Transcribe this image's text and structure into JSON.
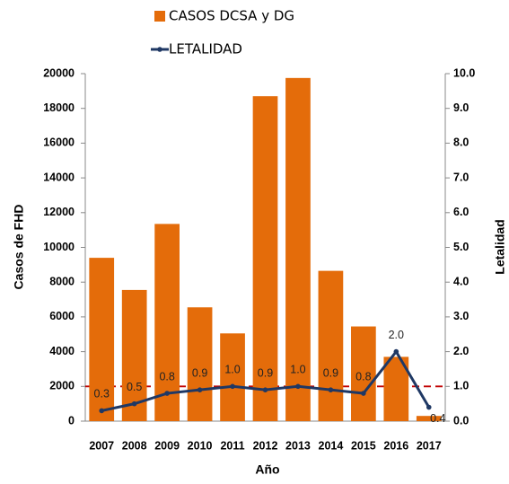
{
  "chart_data": {
    "type": "bar_line",
    "x_label": "Año",
    "y_label": "Casos de FHD",
    "y2_label": "Letalidad",
    "categories": [
      "2007",
      "2008",
      "2009",
      "2010",
      "2011",
      "2012",
      "2013",
      "2014",
      "2015",
      "2016",
      "2017"
    ],
    "series": [
      {
        "name": "CASOS DCSA y DG",
        "type": "bar",
        "color": "#e46c0a",
        "values": [
          9400,
          7550,
          11350,
          6550,
          5050,
          18700,
          19750,
          8650,
          5450,
          3700,
          300
        ]
      },
      {
        "name": "LETALIDAD",
        "type": "line",
        "axis": "y2",
        "color": "#1f3864",
        "values": [
          0.3,
          0.5,
          0.8,
          0.9,
          1.0,
          0.9,
          1.0,
          0.9,
          0.8,
          2.0,
          0.4
        ],
        "value_labels": [
          "0.3",
          "0.5",
          "0.8",
          "0.9",
          "1.0",
          "0.9",
          "1.0",
          "0.9",
          "0.8",
          "2.0",
          "0.4"
        ]
      }
    ],
    "reference_line": {
      "axis": "y2",
      "value": 1.0,
      "color": "#c00000"
    },
    "ylim": [
      0,
      20000
    ],
    "yticks": [
      0,
      2000,
      4000,
      6000,
      8000,
      10000,
      12000,
      14000,
      16000,
      18000,
      20000
    ],
    "y2lim": [
      0,
      10
    ],
    "y2ticks": [
      {
        "value": 0,
        "label": "0.0"
      },
      {
        "value": 1,
        "label": "1.0"
      },
      {
        "value": 2,
        "label": "2.0"
      },
      {
        "value": 3,
        "label": "3.0"
      },
      {
        "value": 4,
        "label": "4.0"
      },
      {
        "value": 5,
        "label": "5.0"
      },
      {
        "value": 6,
        "label": "6.0"
      },
      {
        "value": 7,
        "label": "7.0"
      },
      {
        "value": 8,
        "label": "8.0"
      },
      {
        "value": 9,
        "label": "9.0"
      },
      {
        "value": 10,
        "label": "10.0"
      }
    ],
    "grid": false
  }
}
